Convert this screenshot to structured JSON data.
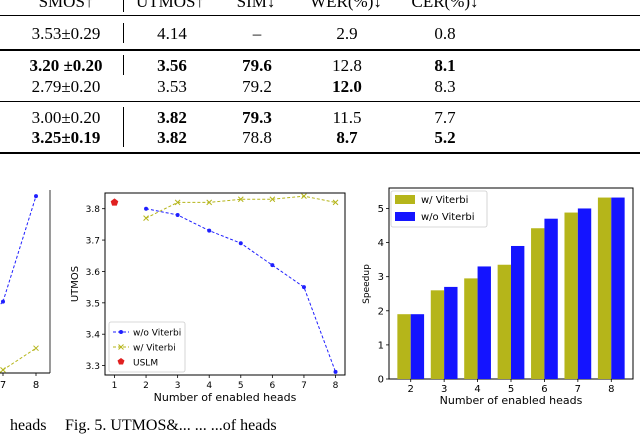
{
  "table": {
    "headers": [
      "SMOS↑",
      "UTMOS↑",
      "SIM↓",
      "WER(%)↓",
      "CER(%)↓"
    ],
    "rows": [
      {
        "cells": [
          "3.53±0.29",
          "4.14",
          "–",
          "2.9",
          "0.8"
        ],
        "bold": [
          false,
          false,
          false,
          false,
          false
        ]
      },
      {
        "cells": [
          "3.20 ±0.20",
          "3.56",
          "79.6",
          "12.8",
          "8.1"
        ],
        "bold": [
          true,
          true,
          true,
          false,
          true
        ]
      },
      {
        "cells": [
          "2.79±0.20",
          "3.53",
          "79.2",
          "12.0",
          "8.3"
        ],
        "bold": [
          false,
          false,
          false,
          true,
          false
        ]
      },
      {
        "cells": [
          "3.00±0.20",
          "3.82",
          "79.3",
          "11.5",
          "7.7"
        ],
        "bold": [
          false,
          true,
          true,
          false,
          false
        ]
      },
      {
        "cells": [
          "3.25±0.19",
          "3.82",
          "78.8",
          "8.7",
          "5.2"
        ],
        "bold": [
          true,
          true,
          false,
          true,
          true
        ]
      }
    ]
  },
  "chart_data": [
    {
      "type": "line",
      "partial": true,
      "x": [
        7,
        8
      ],
      "xticks": [
        "7",
        "8"
      ],
      "series": [
        {
          "name": "w/o Viterbi",
          "color": "#1f1fff",
          "x": [
            7,
            8
          ],
          "values": [
            3.5,
            3.84
          ]
        },
        {
          "name": "w/ Viterbi",
          "color": "#b5b51a",
          "x": [
            7,
            8
          ],
          "values": [
            3.28,
            3.35
          ]
        }
      ]
    },
    {
      "type": "line",
      "xlabel": "Number of enabled heads",
      "ylabel": "UTMOS",
      "xticks": [
        "1",
        "2",
        "3",
        "4",
        "5",
        "6",
        "7",
        "8"
      ],
      "yticks": [
        "3.3",
        "3.4",
        "3.5",
        "3.6",
        "3.7",
        "3.8"
      ],
      "xlim": [
        0.7,
        8.3
      ],
      "ylim": [
        3.27,
        3.85
      ],
      "series": [
        {
          "name": "w/o Viterbi",
          "color": "#1f1fff",
          "style": "dashed",
          "marker": "circle",
          "x": [
            2,
            3,
            4,
            5,
            6,
            7,
            8
          ],
          "values": [
            3.8,
            3.78,
            3.73,
            3.69,
            3.62,
            3.55,
            3.28
          ]
        },
        {
          "name": "w/ Viterbi",
          "color": "#b5b51a",
          "style": "dashed",
          "marker": "x",
          "x": [
            2,
            3,
            4,
            5,
            6,
            7,
            8
          ],
          "values": [
            3.77,
            3.82,
            3.82,
            3.83,
            3.83,
            3.84,
            3.82
          ]
        },
        {
          "name": "USLM",
          "color": "#e02020",
          "marker": "pentagon",
          "x": [
            1
          ],
          "values": [
            3.82
          ]
        }
      ],
      "legend": "bottom-left"
    },
    {
      "type": "bar",
      "xlabel": "Number of enabled heads",
      "ylabel": "Speedup",
      "categories": [
        "2",
        "3",
        "4",
        "5",
        "6",
        "7",
        "8"
      ],
      "yticks": [
        "0",
        "1",
        "2",
        "3",
        "4",
        "5"
      ],
      "ylim": [
        0,
        5.6
      ],
      "series": [
        {
          "name": "w/ Viterbi",
          "color": "#b5b51a",
          "values": [
            1.9,
            2.6,
            2.95,
            3.35,
            4.42,
            4.88,
            5.32
          ]
        },
        {
          "name": "w/o Viterbi",
          "color": "#1414ff",
          "values": [
            1.9,
            2.7,
            3.3,
            3.9,
            4.7,
            5.0,
            5.32
          ]
        }
      ],
      "legend": "top-left"
    }
  ],
  "caption": {
    "left": "heads",
    "right": "Fig. 5.  UTMOS&... ... ...of heads"
  }
}
